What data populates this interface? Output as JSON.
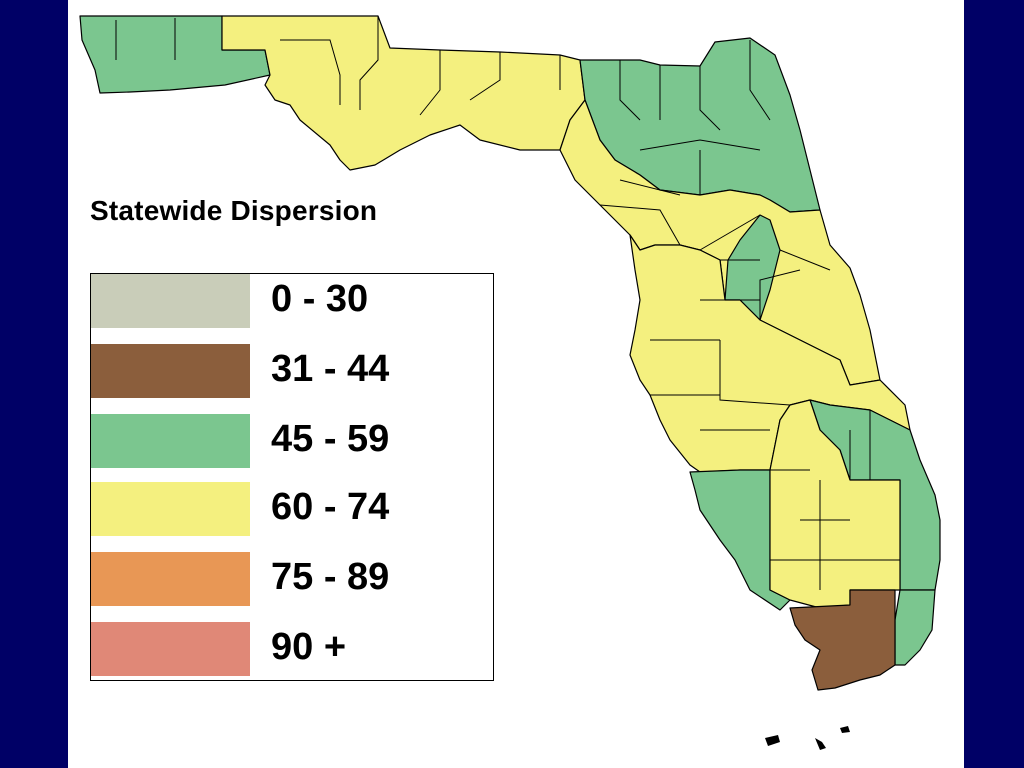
{
  "legend": {
    "title": "Statewide Dispersion",
    "items": [
      {
        "label": "0 - 30",
        "color": "#c9cdb9"
      },
      {
        "label": "31 - 44",
        "color": "#8b5e3c"
      },
      {
        "label": "45 - 59",
        "color": "#7bc68f"
      },
      {
        "label": "60 - 74",
        "color": "#f4f07f"
      },
      {
        "label": "75 - 89",
        "color": "#e89755"
      },
      {
        "label": "90 +",
        "color": "#e08877"
      }
    ]
  },
  "map": {
    "region": "Florida counties",
    "colors": {
      "green": "#7bc68f",
      "yellow": "#f4f07f",
      "brown": "#8b5e3c",
      "border": "#000000"
    }
  }
}
